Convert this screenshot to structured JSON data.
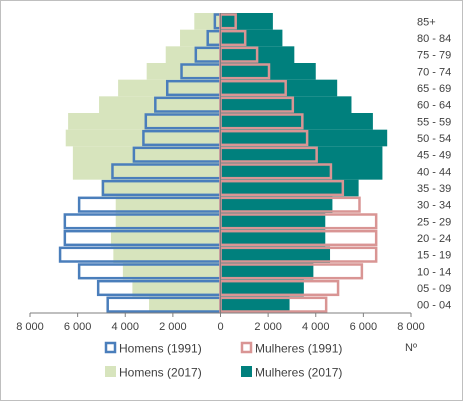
{
  "chart_data": {
    "type": "bar",
    "orientation": "horizontal",
    "xlabel": "Nº",
    "xlim": [
      -8000,
      8000
    ],
    "x_ticks": [
      -8000,
      -6000,
      -4000,
      -2000,
      0,
      2000,
      4000,
      6000,
      8000
    ],
    "x_tick_labels": [
      "8 000",
      "6 000",
      "4 000",
      "2 000",
      "0",
      "2 000",
      "4 000",
      "6 000",
      "8 000"
    ],
    "grid": false,
    "legend_position": "bottom",
    "categories": [
      "00 - 04",
      "05 - 09",
      "10 - 14",
      "15 - 19",
      "20 - 24",
      "25 - 29",
      "30 - 34",
      "35 - 39",
      "40 - 44",
      "45 - 49",
      "50 - 54",
      "55 - 59",
      "60 - 64",
      "65 - 69",
      "70 - 74",
      "75 - 79",
      "80 - 84",
      "85+"
    ],
    "series": [
      {
        "name": "Homens (1991)",
        "color": "#4a7ebb",
        "style": "outline",
        "side": "left",
        "values": [
          4800,
          5200,
          6000,
          6800,
          6600,
          6600,
          6000,
          5000,
          4600,
          3700,
          3300,
          3200,
          2800,
          2300,
          1700,
          1100,
          600,
          300
        ]
      },
      {
        "name": "Mulheres (1991)",
        "color": "#d99594",
        "style": "outline",
        "side": "right",
        "values": [
          4500,
          5000,
          6000,
          6600,
          6600,
          6600,
          5900,
          5200,
          4700,
          4100,
          3700,
          3500,
          3100,
          2800,
          2100,
          1600,
          1100,
          700
        ]
      },
      {
        "name": "Homens (2017)",
        "color": "#d7e4bd",
        "style": "fill",
        "side": "left",
        "values": [
          3000,
          3700,
          4100,
          4500,
          4600,
          4400,
          4400,
          5000,
          6200,
          6200,
          6500,
          6400,
          5100,
          4300,
          3100,
          2300,
          1700,
          1100
        ]
      },
      {
        "name": "Mulheres (2017)",
        "color": "#00807d",
        "style": "fill",
        "side": "right",
        "values": [
          2900,
          3500,
          3900,
          4600,
          4400,
          4400,
          4700,
          5800,
          6800,
          6800,
          7000,
          6400,
          5500,
          4900,
          4000,
          3100,
          2600,
          2200
        ]
      }
    ]
  }
}
